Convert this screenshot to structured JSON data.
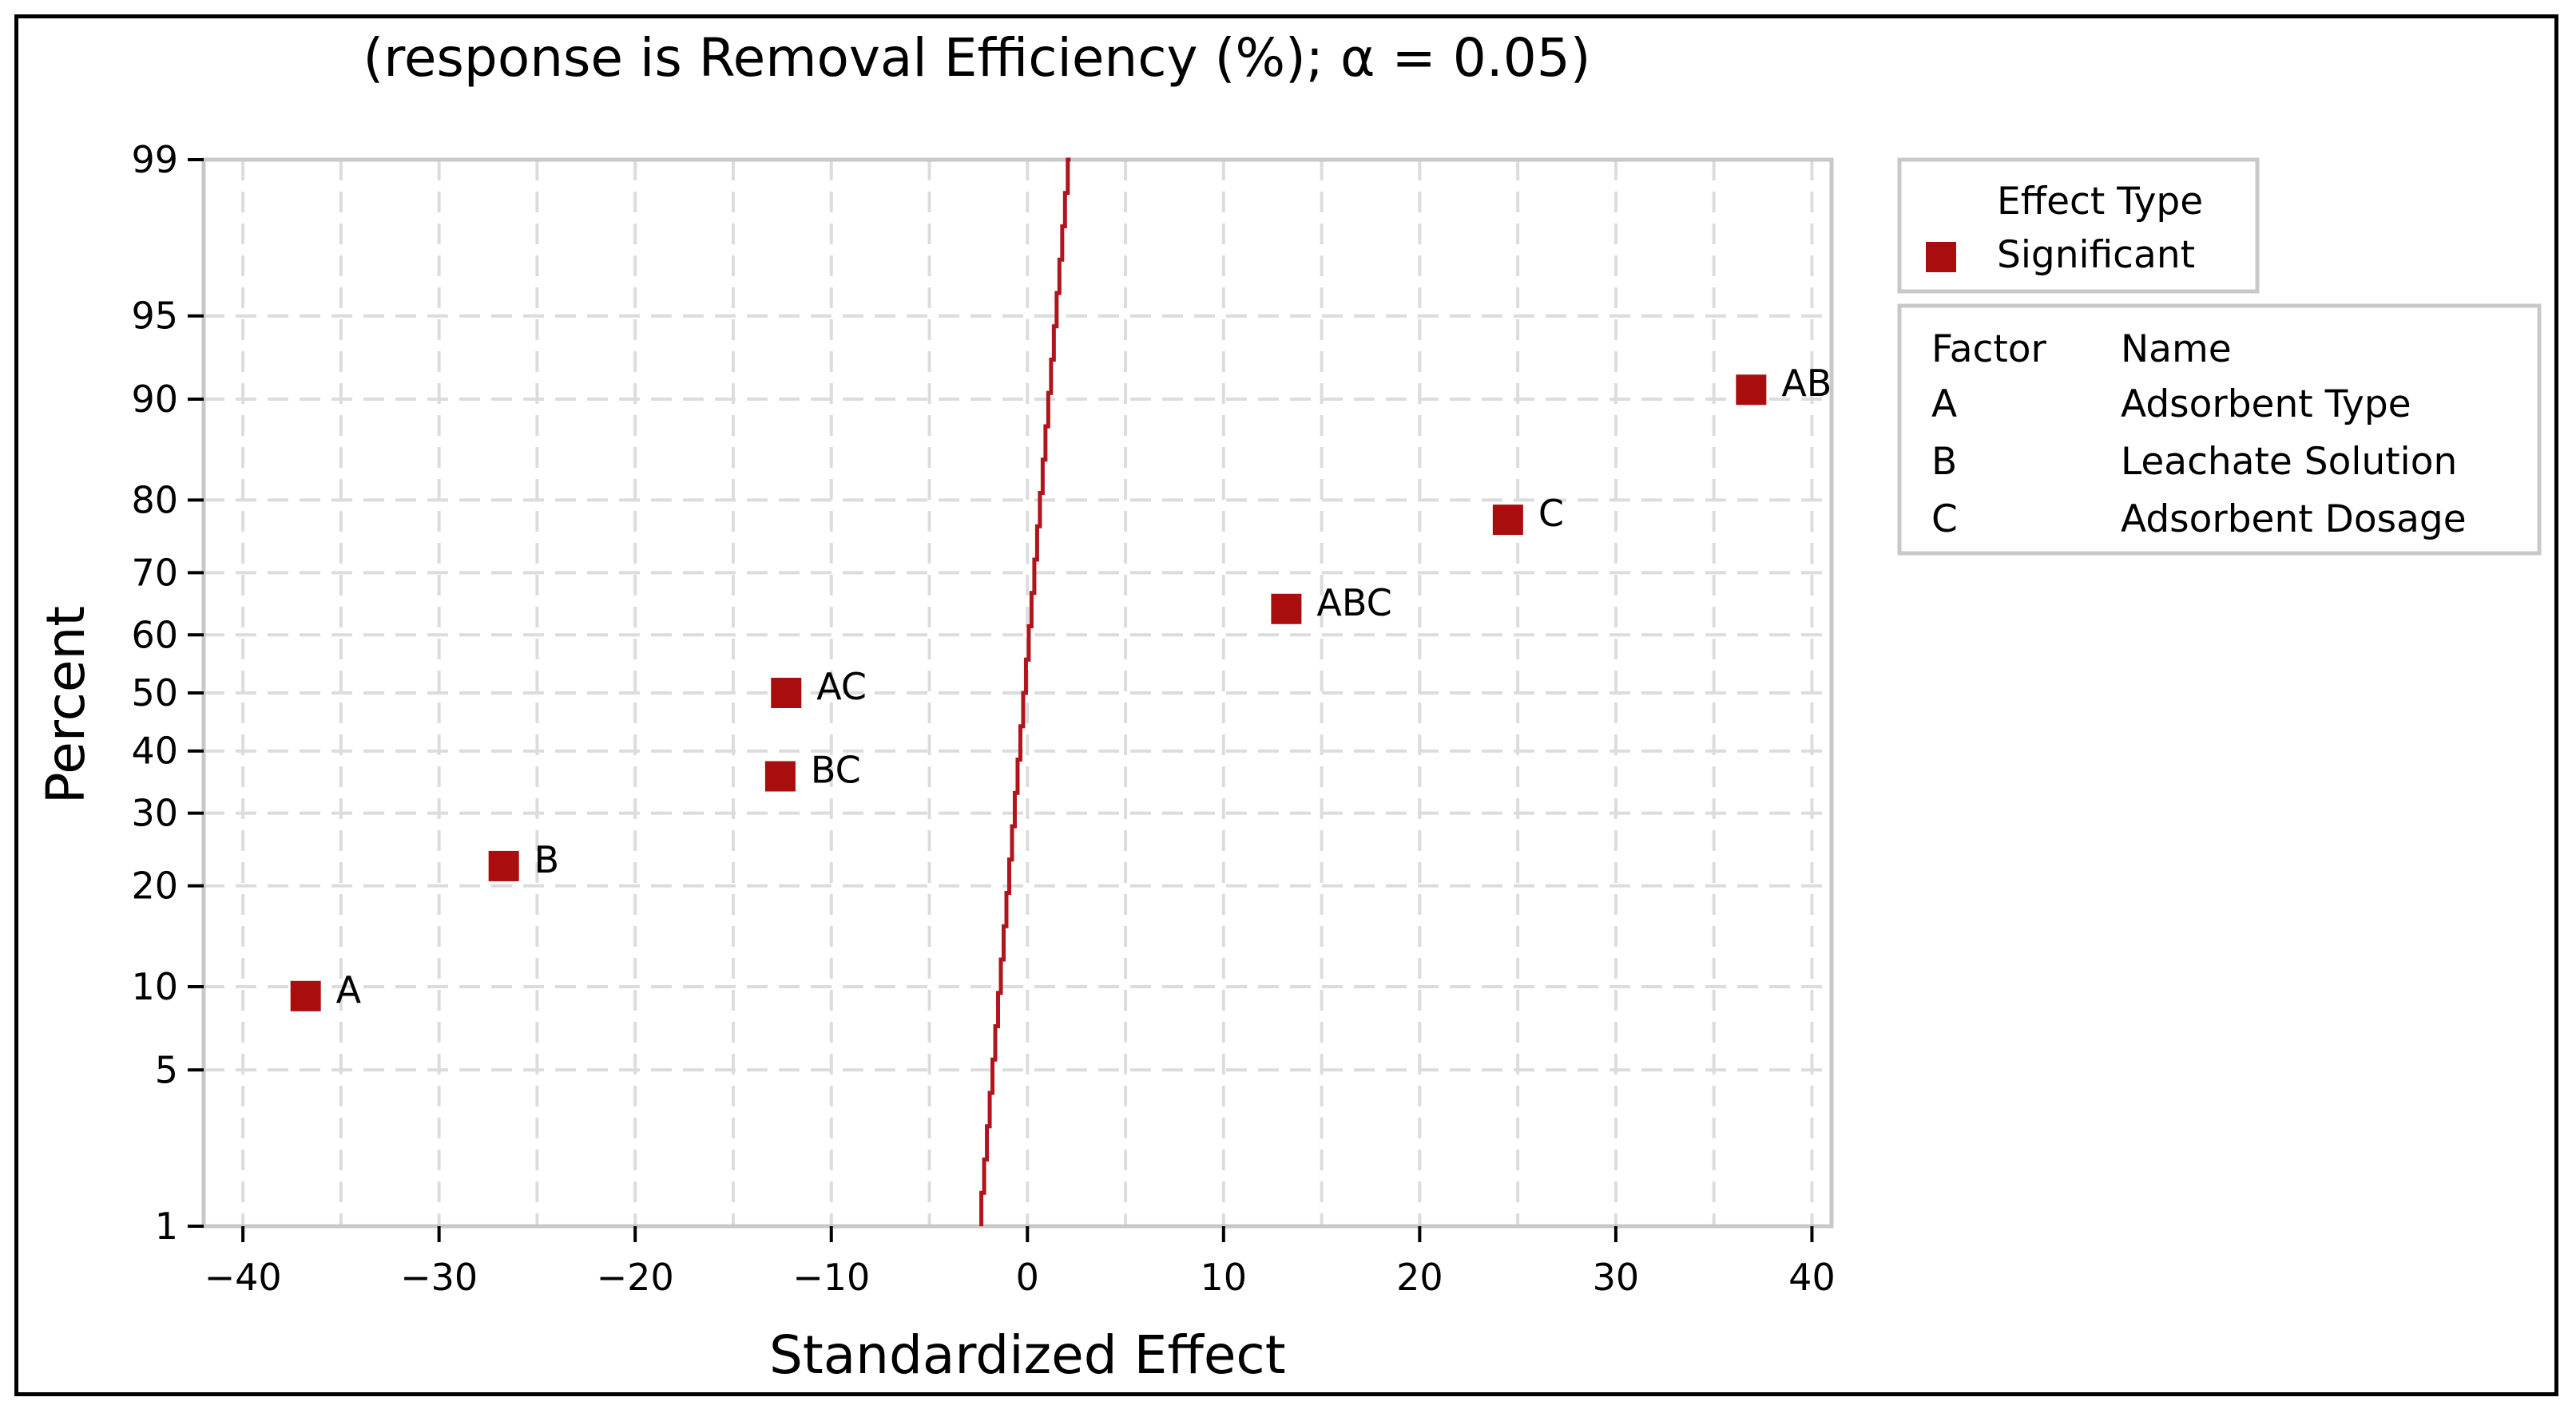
{
  "chart_data": {
    "type": "scatter",
    "subtype": "normal-probability-plot-of-standardized-effects",
    "title": "(response is Removal Efficiency (%); α = 0.05)",
    "xlabel": "Standardized Effect",
    "ylabel": "Percent",
    "xlim": [
      -42,
      41
    ],
    "x_ticks": [
      -40,
      -30,
      -20,
      -10,
      0,
      10,
      20,
      30,
      40
    ],
    "x_tick_labels": [
      "−40",
      "−30",
      "−20",
      "−10",
      "0",
      "10",
      "20",
      "30",
      "40"
    ],
    "y_ticks": [
      1,
      5,
      10,
      20,
      30,
      40,
      50,
      60,
      70,
      80,
      90,
      95,
      99
    ],
    "y_tick_labels": [
      "1",
      "5",
      "10",
      "20",
      "30",
      "40",
      "50",
      "60",
      "70",
      "80",
      "90",
      "95",
      "99"
    ],
    "ylim_percent": [
      1,
      99
    ],
    "grid": true,
    "points": [
      {
        "label": "A",
        "x": -36.8,
        "percent": 9.3
      },
      {
        "label": "B",
        "x": -26.7,
        "percent": 22.5
      },
      {
        "label": "BC",
        "x": -12.6,
        "percent": 35.8
      },
      {
        "label": "AC",
        "x": -12.3,
        "percent": 50.0
      },
      {
        "label": "ABC",
        "x": 13.2,
        "percent": 64.3
      },
      {
        "label": "C",
        "x": 24.5,
        "percent": 77.5
      },
      {
        "label": "AB",
        "x": 36.9,
        "percent": 90.7
      }
    ],
    "reference_line": {
      "x_at_1": -2.35,
      "x_at_99": 2.2
    },
    "marker_color": "#a90d0d",
    "line_color": "#b0141c",
    "legend": {
      "title": "Effect Type",
      "entries": [
        {
          "label": "Significant",
          "color": "#a90d0d"
        }
      ],
      "placement": "top-right"
    },
    "factor_table": {
      "headers": [
        "Factor",
        "Name"
      ],
      "rows": [
        {
          "factor": "A",
          "name": "Adsorbent Type"
        },
        {
          "factor": "B",
          "name": "Leachate Solution"
        },
        {
          "factor": "C",
          "name": "Adsorbent Dosage"
        }
      ]
    }
  }
}
